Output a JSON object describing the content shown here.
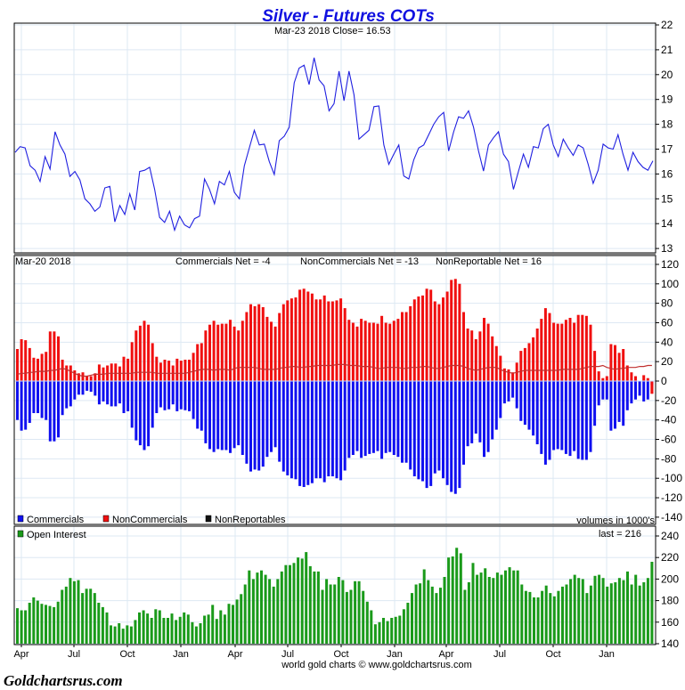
{
  "title": "Silver - Futures COTs",
  "price_header": "Mar-23  2018   Close= 16.53",
  "cot_header": {
    "date": "Mar-20  2018",
    "commercials_net": "Commercials Net = -4",
    "noncommercials_net": "NonCommercials Net = -13",
    "nonreportable_net": "NonReportable Net = 16"
  },
  "legend": {
    "commercials": "Commercials",
    "noncommercials": "NonCommercials",
    "nonreportables": "NonReportables",
    "units": "volumes in 1000's",
    "open_interest": "Open Interest",
    "last": "last = 216"
  },
  "footer": "world gold charts © www.goldchartsrus.com",
  "logo": "Goldchartsrus.com",
  "colors": {
    "price": "#2020e0",
    "commercials": "#1010f0",
    "noncommercials": "#f01010",
    "nonreportables": "#c03030",
    "open_interest": "#1a9a1a",
    "grid": "#dde8f3"
  },
  "chart_data": [
    {
      "type": "line",
      "title": "Silver - Futures COTs",
      "series": [
        {
          "name": "Close",
          "values": [
            16.87,
            17.1,
            17.05,
            16.33,
            16.15,
            15.7,
            16.7,
            16.2,
            17.7,
            17.17,
            16.8,
            15.9,
            16.1,
            15.76,
            15.0,
            14.8,
            14.5,
            14.67,
            15.44,
            15.5,
            14.07,
            14.73,
            14.37,
            15.2,
            14.55,
            16.1,
            16.15,
            16.27,
            15.38,
            14.25,
            14.05,
            14.5,
            13.74,
            14.3,
            13.95,
            13.83,
            14.2,
            14.3,
            15.8,
            15.38,
            14.8,
            15.7,
            15.56,
            16.1,
            15.26,
            15.0,
            16.33,
            17.05,
            17.76,
            17.17,
            17.2,
            16.5,
            15.98,
            17.34,
            17.52,
            17.88,
            19.67,
            20.26,
            20.38,
            19.6,
            20.68,
            19.79,
            19.55,
            18.54,
            18.83,
            20.14,
            18.95,
            20.14,
            19.19,
            17.4,
            17.58,
            17.76,
            18.71,
            18.74,
            17.17,
            16.39,
            16.8,
            17.17,
            15.92,
            15.8,
            16.57,
            17.05,
            17.17,
            17.58,
            18.0,
            18.3,
            18.48,
            16.93,
            17.7,
            18.3,
            18.24,
            18.54,
            17.88,
            16.93,
            16.12,
            17.17,
            17.46,
            17.7,
            16.8,
            16.5,
            15.38,
            16.1,
            16.8,
            16.27,
            17.1,
            17.05,
            17.82,
            18.0,
            17.17,
            16.7,
            17.4,
            17.05,
            16.75,
            17.17,
            17.05,
            16.39,
            15.62,
            16.15,
            17.2,
            17.05,
            17.0,
            17.58,
            16.8,
            16.15,
            16.87,
            16.5,
            16.27,
            16.15,
            16.53
          ]
        }
      ],
      "ylim": [
        13,
        22
      ],
      "yticks": [
        13,
        14,
        15,
        16,
        17,
        18,
        19,
        20,
        21,
        22
      ],
      "last_close": 16.53
    },
    {
      "type": "bar",
      "series": [
        {
          "name": "Commercials",
          "values": [
            -40,
            -51,
            -50,
            -43,
            -33,
            -33,
            -38,
            -40,
            -62,
            -62,
            -58,
            -35,
            -28,
            -26,
            -19,
            -14,
            -14,
            -10,
            -11,
            -15,
            -24,
            -21,
            -24,
            -26,
            -26,
            -23,
            -33,
            -31,
            -48,
            -61,
            -66,
            -71,
            -67,
            -48,
            -33,
            -27,
            -30,
            -29,
            -24,
            -31,
            -29,
            -30,
            -31,
            -39,
            -49,
            -51,
            -64,
            -70,
            -73,
            -70,
            -71,
            -71,
            -74,
            -69,
            -66,
            -76,
            -85,
            -93,
            -91,
            -92,
            -88,
            -78,
            -73,
            -68,
            -83,
            -93,
            -97,
            -100,
            -101,
            -108,
            -109,
            -107,
            -105,
            -100,
            -100,
            -104,
            -98,
            -98,
            -100,
            -102,
            -92,
            -79,
            -76,
            -72,
            -79,
            -77,
            -75,
            -74,
            -72,
            -80,
            -74,
            -73,
            -76,
            -78,
            -84,
            -84,
            -91,
            -98,
            -101,
            -103,
            -110,
            -108,
            -95,
            -92,
            -100,
            -107,
            -114,
            -116,
            -110,
            -86,
            -67,
            -64,
            -54,
            -63,
            -78,
            -73,
            -60,
            -50,
            -38,
            -23,
            -21,
            -17,
            -28,
            -41,
            -45,
            -50,
            -56,
            -65,
            -75,
            -86,
            -81,
            -71,
            -70,
            -71,
            -75,
            -77,
            -72,
            -80,
            -81,
            -81,
            -73,
            -46,
            -25,
            -19,
            -19,
            -51,
            -49,
            -42,
            -46,
            -30,
            -23,
            -19,
            -15,
            -21,
            -19,
            -4
          ]
        },
        {
          "name": "NonCommercials",
          "values": [
            33,
            43,
            42,
            34,
            24,
            23,
            28,
            30,
            51,
            51,
            46,
            22,
            16,
            16,
            11,
            8,
            9,
            5,
            5,
            8,
            17,
            14,
            16,
            18,
            18,
            15,
            25,
            23,
            40,
            52,
            57,
            62,
            58,
            39,
            25,
            19,
            22,
            21,
            16,
            23,
            21,
            22,
            22,
            29,
            38,
            39,
            52,
            58,
            62,
            58,
            59,
            59,
            63,
            56,
            52,
            62,
            71,
            79,
            77,
            79,
            76,
            66,
            61,
            56,
            70,
            79,
            83,
            85,
            86,
            94,
            95,
            92,
            90,
            84,
            84,
            88,
            82,
            82,
            83,
            85,
            75,
            63,
            60,
            56,
            64,
            62,
            60,
            60,
            59,
            67,
            60,
            59,
            62,
            64,
            71,
            71,
            77,
            84,
            87,
            88,
            95,
            94,
            82,
            79,
            86,
            92,
            104,
            105,
            100,
            71,
            54,
            52,
            43,
            51,
            65,
            59,
            46,
            36,
            26,
            13,
            12,
            9,
            19,
            31,
            34,
            39,
            45,
            54,
            64,
            75,
            70,
            60,
            59,
            59,
            63,
            65,
            60,
            68,
            68,
            67,
            58,
            31,
            10,
            3,
            5,
            38,
            37,
            29,
            33,
            16,
            9,
            5,
            0,
            6,
            3,
            -13
          ]
        },
        {
          "name": "NonReportables",
          "values": [
            7,
            8,
            8,
            9,
            9,
            10,
            10,
            10,
            11,
            11,
            12,
            13,
            12,
            10,
            8,
            6,
            5,
            5,
            6,
            7,
            7,
            7,
            8,
            8,
            8,
            8,
            8,
            8,
            8,
            9,
            9,
            9,
            9,
            9,
            8,
            8,
            8,
            8,
            8,
            8,
            8,
            8,
            9,
            10,
            11,
            12,
            12,
            12,
            11,
            12,
            12,
            12,
            11,
            13,
            14,
            14,
            14,
            14,
            14,
            13,
            12,
            12,
            12,
            12,
            13,
            14,
            14,
            15,
            15,
            14,
            14,
            15,
            15,
            16,
            16,
            16,
            16,
            16,
            17,
            17,
            17,
            16,
            16,
            16,
            15,
            15,
            15,
            14,
            13,
            13,
            14,
            14,
            14,
            14,
            13,
            13,
            14,
            14,
            14,
            15,
            15,
            14,
            13,
            13,
            14,
            15,
            16,
            16,
            16,
            15,
            13,
            12,
            11,
            12,
            13,
            14,
            14,
            14,
            12,
            10,
            9,
            8,
            9,
            10,
            11,
            11,
            11,
            11,
            11,
            11,
            11,
            11,
            11,
            12,
            12,
            12,
            12,
            12,
            13,
            14,
            15,
            15,
            15,
            16,
            14,
            13,
            12,
            13,
            13,
            14,
            14,
            14,
            15,
            15,
            16,
            16
          ]
        }
      ],
      "ylim": [
        -140,
        120
      ],
      "yticks": [
        -140,
        -120,
        -100,
        -80,
        -60,
        -40,
        -20,
        0,
        20,
        40,
        60,
        80,
        100,
        120
      ],
      "legend": "bottom-left"
    },
    {
      "type": "bar",
      "series": [
        {
          "name": "Open Interest",
          "values": [
            173,
            171,
            171,
            178,
            183,
            180,
            177,
            176,
            175,
            174,
            179,
            190,
            193,
            201,
            198,
            199,
            187,
            191,
            191,
            187,
            178,
            174,
            169,
            157,
            156,
            159,
            154,
            157,
            156,
            162,
            169,
            171,
            168,
            164,
            172,
            171,
            164,
            164,
            168,
            162,
            165,
            169,
            167,
            160,
            156,
            159,
            166,
            167,
            176,
            163,
            171,
            167,
            177,
            176,
            181,
            186,
            195,
            208,
            200,
            206,
            208,
            204,
            200,
            193,
            200,
            207,
            213,
            213,
            215,
            220,
            219,
            225,
            212,
            207,
            207,
            190,
            200,
            195,
            195,
            202,
            199,
            188,
            190,
            198,
            198,
            189,
            179,
            171,
            158,
            160,
            164,
            161,
            164,
            165,
            166,
            172,
            178,
            187,
            195,
            196,
            209,
            199,
            193,
            187,
            192,
            202,
            220,
            221,
            229,
            224,
            190,
            197,
            215,
            204,
            206,
            210,
            202,
            201,
            206,
            204,
            208,
            211,
            208,
            208,
            195,
            189,
            188,
            183,
            183,
            189,
            194,
            187,
            184,
            189,
            193,
            195,
            200,
            204,
            201,
            200,
            187,
            194,
            203,
            204,
            201,
            193,
            196,
            197,
            201,
            199,
            207,
            195,
            204,
            194,
            197,
            201,
            216
          ]
        }
      ],
      "ylim": [
        140,
        245
      ],
      "yticks": [
        140,
        160,
        180,
        200,
        220,
        240
      ],
      "last": 216
    }
  ],
  "x_ticks": [
    "Apr",
    "Jul",
    "Oct",
    "Jan",
    "Apr",
    "Jul",
    "Oct",
    "Jan",
    "Apr",
    "Jul",
    "Oct",
    "Jan"
  ]
}
